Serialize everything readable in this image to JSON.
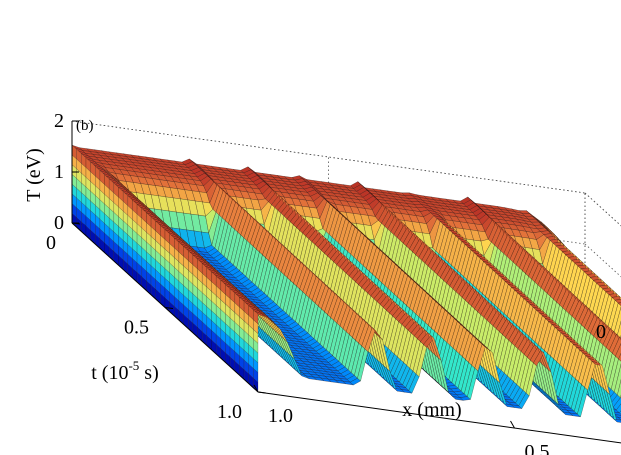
{
  "chart_data": {
    "type": "surface3d",
    "panel_label": "(b)",
    "zlabel": "T (eV)",
    "xlabel": "x (mm)",
    "ylabel_base": "t (10",
    "ylabel_exp": "-5",
    "ylabel_tail": " s)",
    "zticks": [
      {
        "value": 0,
        "label": "0"
      },
      {
        "value": 1,
        "label": "1"
      },
      {
        "value": 2,
        "label": "2"
      }
    ],
    "xticks": [
      {
        "value": 0,
        "label": "0"
      },
      {
        "value": 0.5,
        "label": "0.5"
      },
      {
        "value": 1.0,
        "label": "1.0"
      }
    ],
    "tticks": [
      {
        "value": 0,
        "label": "0"
      },
      {
        "value": 0.5,
        "label": "0.5"
      },
      {
        "value": 1.0,
        "label": "1.0"
      }
    ],
    "xlim": [
      0,
      1.0
    ],
    "tlim": [
      0,
      1.0
    ],
    "zlim": [
      0,
      2
    ],
    "grid": true,
    "colormap": "jet",
    "description_values": {
      "plateau_T": 1.5,
      "ridge_count": 7,
      "ridge_peak_T": 1.65,
      "trough_T": 0.4
    }
  }
}
